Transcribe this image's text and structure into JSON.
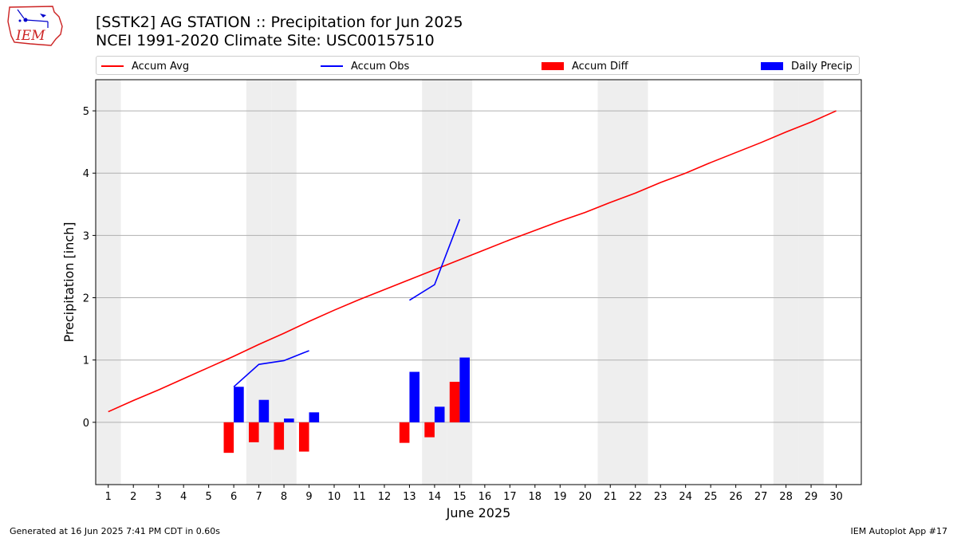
{
  "header": {
    "title_line1": "[SSTK2] AG STATION :: Precipitation for Jun 2025",
    "title_line2": "NCEI 1991-2020 Climate Site: USC00157510"
  },
  "logo": {
    "text": "IEM"
  },
  "legend": {
    "placement": "top, horizontal",
    "items": [
      {
        "label": "Accum Avg",
        "kind": "line",
        "color": "#ff0000"
      },
      {
        "label": "Accum Obs",
        "kind": "line",
        "color": "#0000ff"
      },
      {
        "label": "Accum Diff",
        "kind": "bar",
        "color": "#ff0000"
      },
      {
        "label": "Daily Precip",
        "kind": "bar",
        "color": "#0000ff"
      }
    ]
  },
  "footer": {
    "left": "Generated at 16 Jun 2025 7:41 PM CDT in 0.60s",
    "right": "IEM Autoplot App #17"
  },
  "chart_data": {
    "type": "bar",
    "title": "[SSTK2] AG STATION :: Precipitation for Jun 2025",
    "xlabel": "June 2025",
    "ylabel": "Precipitation [inch]",
    "xlim": [
      0.5,
      31
    ],
    "ylim": [
      -1.0,
      5.5
    ],
    "yticks": [
      0,
      1,
      2,
      3,
      4,
      5
    ],
    "grid": "horizontal",
    "weekend_shading_days": [
      1,
      7,
      8,
      14,
      15,
      21,
      22,
      28,
      29
    ],
    "weekend_shading_color": "#eeeeee",
    "x": [
      1,
      2,
      3,
      4,
      5,
      6,
      7,
      8,
      9,
      10,
      11,
      12,
      13,
      14,
      15,
      16,
      17,
      18,
      19,
      20,
      21,
      22,
      23,
      24,
      25,
      26,
      27,
      28,
      29,
      30
    ],
    "series": [
      {
        "name": "Accum Avg",
        "kind": "line",
        "color": "#ff0000",
        "x": [
          1,
          2,
          3,
          4,
          5,
          6,
          7,
          8,
          9,
          10,
          11,
          12,
          13,
          14,
          15,
          16,
          17,
          18,
          19,
          20,
          21,
          22,
          23,
          24,
          25,
          26,
          27,
          28,
          29,
          30
        ],
        "values": [
          0.17,
          0.35,
          0.52,
          0.7,
          0.88,
          1.06,
          1.25,
          1.43,
          1.62,
          1.8,
          1.97,
          2.13,
          2.29,
          2.45,
          2.61,
          2.77,
          2.93,
          3.08,
          3.23,
          3.37,
          3.53,
          3.68,
          3.85,
          4.0,
          4.17,
          4.33,
          4.49,
          4.66,
          4.82,
          5.0
        ]
      },
      {
        "name": "Accum Obs",
        "kind": "line",
        "color": "#0000ff",
        "segments": [
          {
            "x": [
              6,
              7,
              8,
              9
            ],
            "values": [
              0.57,
              0.93,
              0.99,
              1.15
            ]
          },
          {
            "x": [
              13,
              14,
              15
            ],
            "values": [
              1.96,
              2.21,
              3.26
            ]
          }
        ]
      },
      {
        "name": "Accum Diff",
        "kind": "bar",
        "color": "#ff0000",
        "x": [
          6,
          7,
          8,
          9,
          13,
          14,
          15
        ],
        "values": [
          -0.49,
          -0.32,
          -0.44,
          -0.47,
          -0.33,
          -0.24,
          0.65
        ]
      },
      {
        "name": "Daily Precip",
        "kind": "bar",
        "color": "#0000ff",
        "x": [
          6,
          7,
          8,
          9,
          13,
          14,
          15
        ],
        "values": [
          0.57,
          0.36,
          0.06,
          0.16,
          0.81,
          0.25,
          1.04
        ]
      }
    ]
  }
}
